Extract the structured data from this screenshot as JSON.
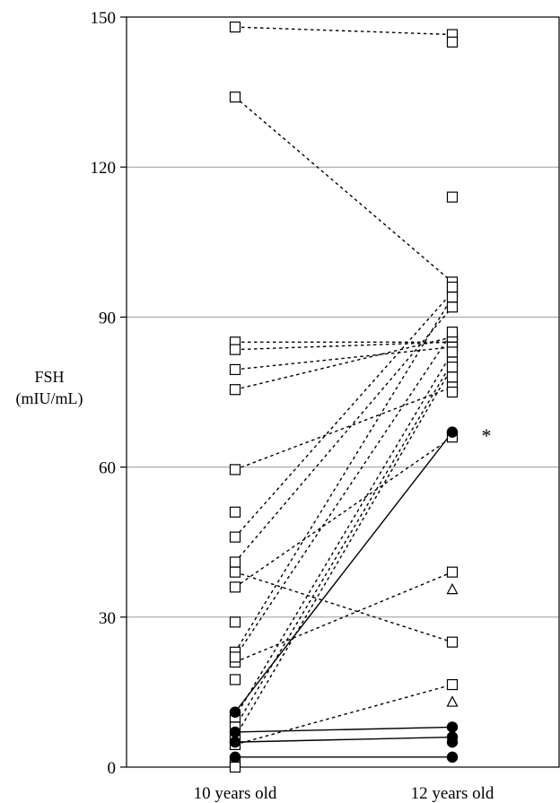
{
  "chart_data": {
    "type": "scatter",
    "ylabel_line1": "FSH",
    "ylabel_line2": "(mIU/mL)",
    "xlabel": "",
    "categories": [
      "10 years old",
      "12 years old"
    ],
    "ylim": [
      0,
      150
    ],
    "yticks": [
      0,
      30,
      60,
      90,
      120,
      150
    ],
    "grid": true,
    "annotation": "*",
    "annotation_at": {
      "category": "12 years old",
      "y": 67
    },
    "pairs_dashed_squares": [
      {
        "y10": 148,
        "y12": 146.5
      },
      {
        "y10": 134,
        "y12": 97
      },
      {
        "y10": 85,
        "y12": 85
      },
      {
        "y10": 83.5,
        "y12": 85
      },
      {
        "y10": 79.5,
        "y12": 84
      },
      {
        "y10": 75.5,
        "y12": 86
      },
      {
        "y10": 59.5,
        "y12": 76
      },
      {
        "y10": 46,
        "y12": 95
      },
      {
        "y10": 41,
        "y12": 92
      },
      {
        "y10": 39,
        "y12": 25
      },
      {
        "y10": 36,
        "y12": 66
      },
      {
        "y10": 23,
        "y12": 94
      },
      {
        "y10": 21,
        "y12": 39
      },
      {
        "y10": 22,
        "y12": 87
      },
      {
        "y10": 10,
        "y12": 83
      },
      {
        "y10": 8,
        "y12": 81
      },
      {
        "y10": 6,
        "y12": 80
      },
      {
        "y10": 4.5,
        "y12": 16.5
      }
    ],
    "unpaired_squares_10": [
      51,
      29,
      17.5,
      1,
      0
    ],
    "unpaired_squares_12": [
      145,
      114,
      96,
      78,
      75
    ],
    "triangles_12": [
      35.5,
      13
    ],
    "pairs_solid_circles": [
      {
        "y10": 11,
        "y12": 67
      },
      {
        "y10": 7,
        "y12": 8
      },
      {
        "y10": 5,
        "y12": 6
      },
      {
        "y10": 2,
        "y12": 2
      }
    ],
    "circles_12_only": [
      5
    ]
  }
}
